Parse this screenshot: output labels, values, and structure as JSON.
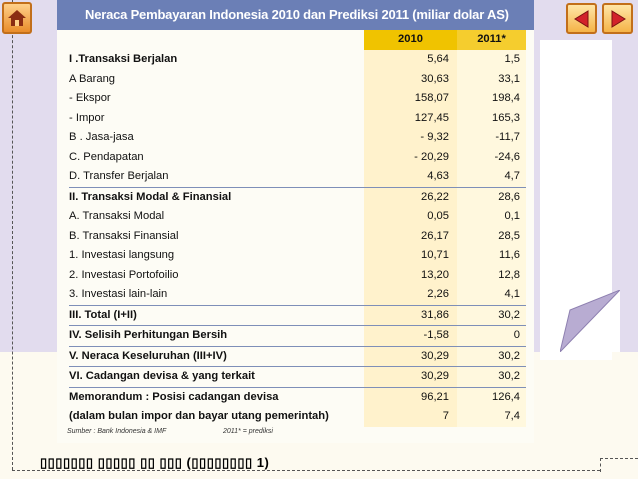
{
  "table": {
    "title": "Neraca Pembayaran Indonesia 2010 dan Prediksi 2011 (miliar dolar AS)",
    "col_2010": "2010",
    "col_2011": "2011*",
    "rows": [
      {
        "label": "I .Transaksi Berjalan",
        "v2010": "5,64",
        "v2011": "1,5"
      },
      {
        "label": "A Barang",
        "v2010": "30,63",
        "v2011": "33,1"
      },
      {
        "label": "- Ekspor",
        "v2010": "158,07",
        "v2011": "198,4"
      },
      {
        "label": "- Impor",
        "v2010": "127,45",
        "v2011": "165,3"
      },
      {
        "label": "B . Jasa-jasa",
        "v2010": "- 9,32",
        "v2011": "-11,7"
      },
      {
        "label": "C. Pendapatan",
        "v2010": "- 20,29",
        "v2011": "-24,6"
      },
      {
        "label": "D. Transfer Berjalan",
        "v2010": "4,63",
        "v2011": "4,7"
      },
      {
        "label": "II. Transaksi Modal & Finansial",
        "v2010": "26,22",
        "v2011": "28,6"
      },
      {
        "label": "A. Transaksi Modal",
        "v2010": "0,05",
        "v2011": "0,1"
      },
      {
        "label": "B. Transaksi Finansial",
        "v2010": "26,17",
        "v2011": "28,5"
      },
      {
        "label": "1. Investasi langsung",
        "v2010": "10,71",
        "v2011": "11,6"
      },
      {
        "label": "2. Investasi Portofoilio",
        "v2010": "13,20",
        "v2011": "12,8"
      },
      {
        "label": "3. Investasi lain-lain",
        "v2010": "2,26",
        "v2011": "4,1"
      },
      {
        "label": "III. Total (I+II)",
        "v2010": "31,86",
        "v2011": "30,2"
      },
      {
        "label": "IV. Selisih Perhitungan Bersih",
        "v2010": "-1,58",
        "v2011": "0"
      },
      {
        "label": "V. Neraca Keseluruhan (III+IV)",
        "v2010": "30,29",
        "v2011": "30,2"
      },
      {
        "label": "VI. Cadangan devisa & yang terkait",
        "v2010": "30,29",
        "v2011": "30,2"
      },
      {
        "label": "Memorandum : Posisi cadangan devisa",
        "v2010": "96,21",
        "v2011": "126,4"
      },
      {
        "label": "(dalam bulan impor dan bayar utang pemerintah)",
        "v2010": "7",
        "v2011": "7,4"
      }
    ],
    "source": "Sumber : Bank Indonesia & IMF",
    "note": "2011* = prediksi"
  },
  "caption": "▯▯▯▯▯▯▯ ▯▯▯▯▯ ▯▯ ▯▯▯ (▯▯▯▯▯▯▯▯ 1)",
  "nav": {
    "home_icon": "home-icon",
    "prev_icon": "triangle-left-icon",
    "next_icon": "triangle-right-icon"
  },
  "colors": {
    "title_bg": "#6b7fb6",
    "year_header": "#f3c600",
    "nav_border": "#c26f1a",
    "nav_arrow": "#d2222a"
  }
}
